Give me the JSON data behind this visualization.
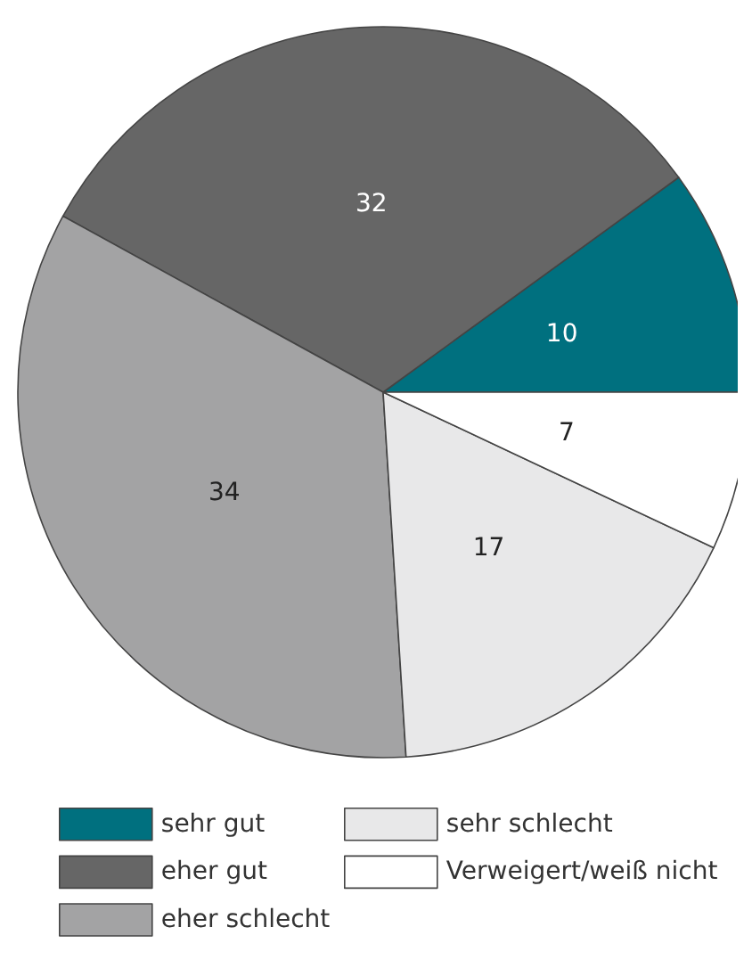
{
  "chart_data": {
    "type": "pie",
    "categories": [
      "sehr gut",
      "eher gut",
      "eher schlecht",
      "sehr schlecht",
      "Verweigert/weiß nicht"
    ],
    "values": [
      10,
      32,
      34,
      17,
      7
    ],
    "colors": [
      "#00707f",
      "#666666",
      "#a3a3a4",
      "#e8e8e9",
      "#ffffff"
    ],
    "data_labels": true,
    "legend": "bottom"
  }
}
